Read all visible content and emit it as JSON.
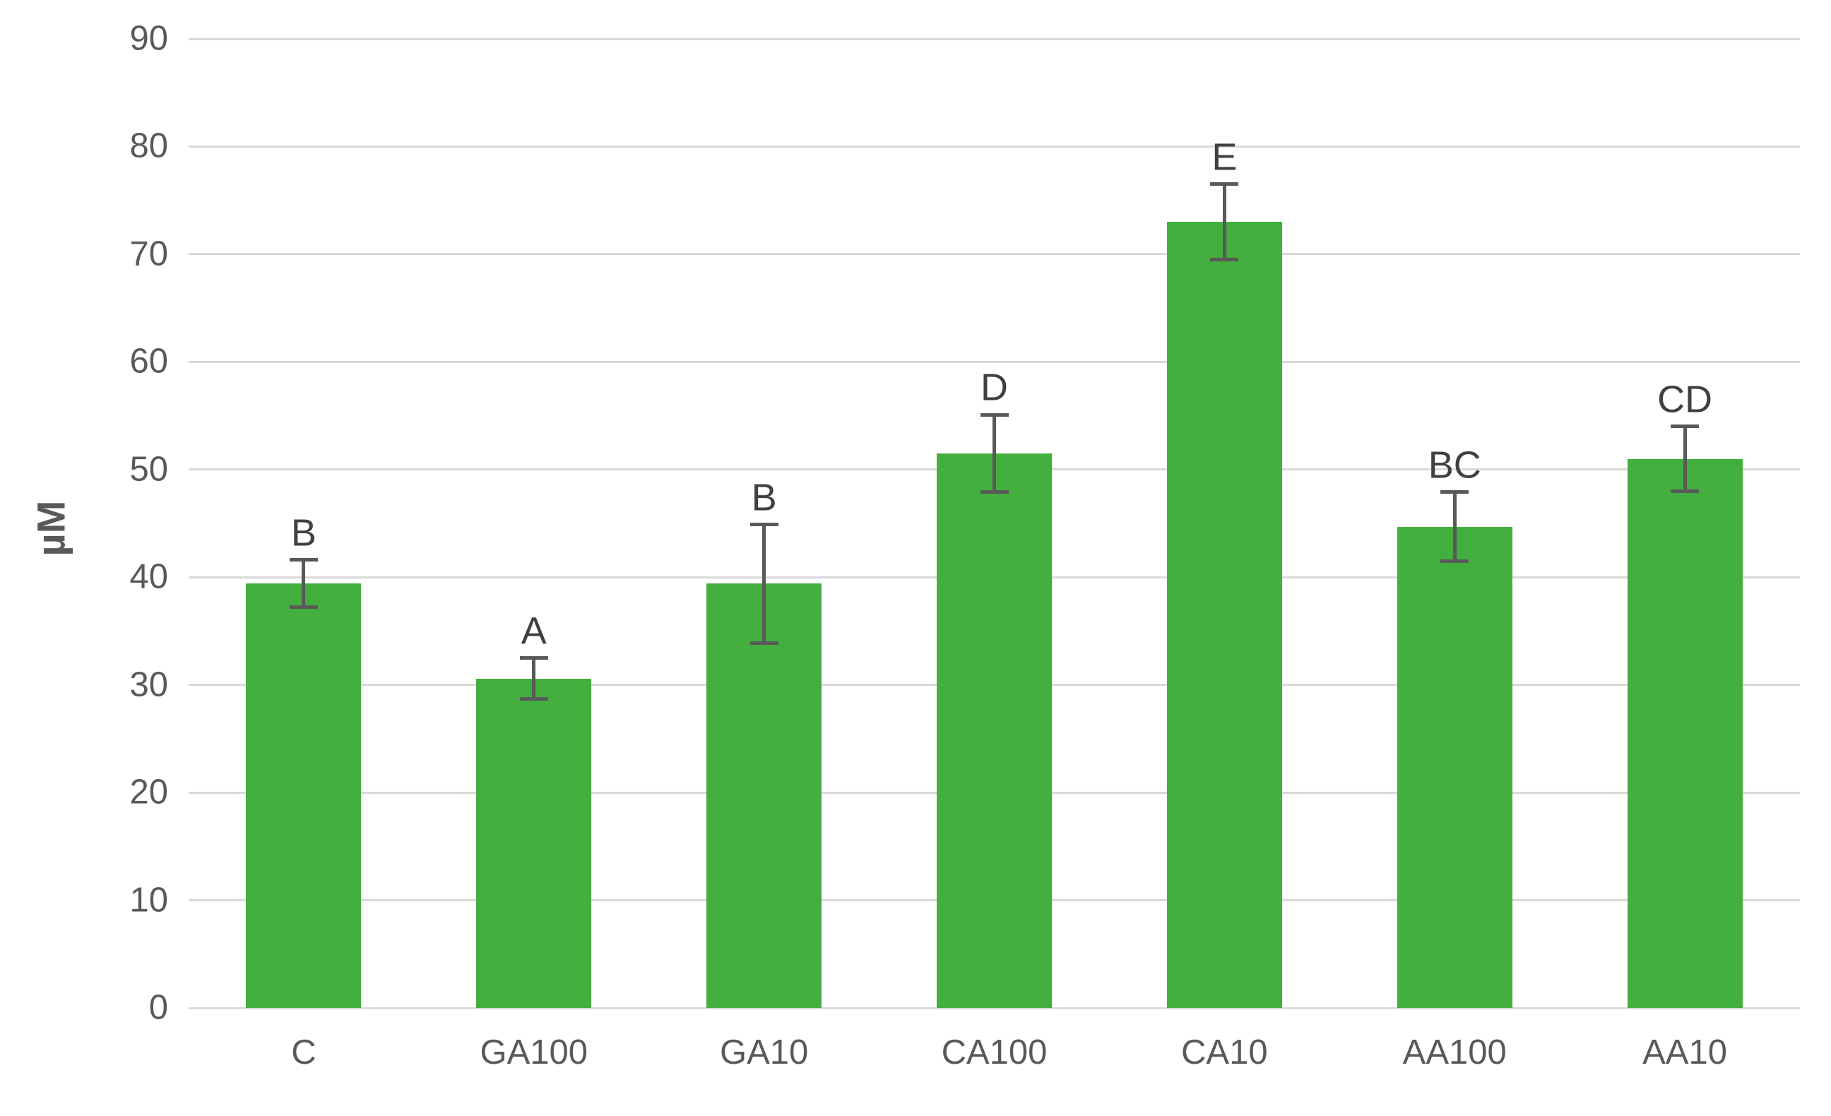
{
  "chart_data": {
    "type": "bar",
    "title": "",
    "xlabel": "",
    "ylabel": "µM",
    "categories": [
      "C",
      "GA100",
      "GA10",
      "CA100",
      "CA10",
      "AA100",
      "AA10"
    ],
    "values": [
      39.4,
      30.6,
      39.4,
      51.5,
      73,
      44.7,
      51
    ],
    "error_bars": [
      2.2,
      1.9,
      5.5,
      3.6,
      3.5,
      3.2,
      3.0
    ],
    "sig_letters": [
      "B",
      "A",
      "B",
      "D",
      "E",
      "BC",
      "CD"
    ],
    "yticks": [
      0,
      10,
      20,
      30,
      40,
      50,
      60,
      70,
      80,
      90
    ],
    "ylim": [
      0,
      90
    ],
    "grid": "horizontal-major",
    "legend_position": "none",
    "colors": {
      "bar_fill": "#43af3e",
      "gridline": "#d9d9d9",
      "axis_text": "#595959",
      "error_bar": "#595959",
      "sig_letter": "#404040",
      "background": "#ffffff"
    }
  }
}
